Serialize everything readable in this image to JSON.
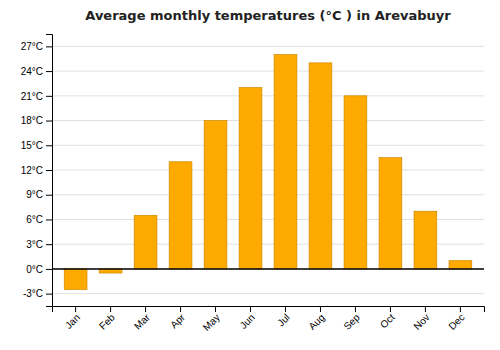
{
  "chart_data": {
    "type": "bar",
    "title": "Average monthly temperatures (°C ) in Arevabuyr",
    "categories": [
      "Jan",
      "Feb",
      "Mar",
      "Apr",
      "May",
      "Jun",
      "Jul",
      "Aug",
      "Sep",
      "Oct",
      "Nov",
      "Dec"
    ],
    "values": [
      -2.5,
      -0.5,
      6.5,
      13.0,
      18.0,
      22.0,
      26.0,
      25.0,
      21.0,
      13.5,
      7.0,
      1.0
    ],
    "color": "#FFAA00",
    "ylim": [
      -4.5,
      28.5
    ],
    "yticks": [
      {
        "value": -3,
        "label": "-3°C"
      },
      {
        "value": 0,
        "label": "0°C"
      },
      {
        "value": 3,
        "label": "3°C"
      },
      {
        "value": 6,
        "label": "6°C"
      },
      {
        "value": 9,
        "label": "9°C"
      },
      {
        "value": 12,
        "label": "12°C"
      },
      {
        "value": 15,
        "label": "15°C"
      },
      {
        "value": 18,
        "label": "18°C"
      },
      {
        "value": 21,
        "label": "21°C"
      },
      {
        "value": 24,
        "label": "24°C"
      },
      {
        "value": 27,
        "label": "27°C"
      }
    ],
    "grid": true
  }
}
